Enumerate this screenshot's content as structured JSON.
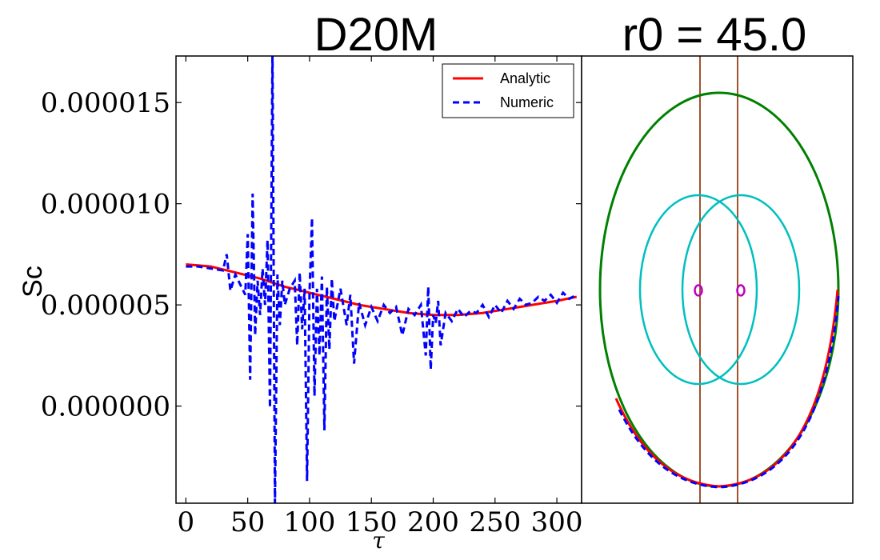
{
  "chart_data": [
    {
      "type": "line",
      "title": "D20M",
      "xlabel": "τ",
      "ylabel": "Sc",
      "xlim": [
        -8,
        320
      ],
      "ylim": [
        -4.8e-06,
        1.73e-05
      ],
      "xticks": [
        0,
        50,
        100,
        150,
        200,
        250,
        300
      ],
      "xtick_labels": [
        "0",
        "50",
        "100",
        "150",
        "200",
        "250",
        "300"
      ],
      "yticks": [
        0.0,
        5e-06,
        1e-05,
        1.5e-05
      ],
      "ytick_labels": [
        "0.000000",
        "0.000005",
        "0.000010",
        "0.000015"
      ],
      "legend": "top-right",
      "series": [
        {
          "name": "Analytic",
          "color": "#ff0000",
          "style": "solid",
          "x": [
            0,
            20,
            40,
            60,
            80,
            100,
            120,
            140,
            160,
            180,
            200,
            220,
            240,
            260,
            280,
            300,
            316
          ],
          "y": [
            7e-06,
            6.9e-06,
            6.6e-06,
            6.3e-06,
            5.9e-06,
            5.6e-06,
            5.3e-06,
            5e-06,
            4.8e-06,
            4.6e-06,
            4.5e-06,
            4.5e-06,
            4.6e-06,
            4.8e-06,
            5e-06,
            5.2e-06,
            5.4e-06
          ]
        },
        {
          "name": "Numeric",
          "color": "#0000ff",
          "style": "dashed",
          "x": [
            0,
            10,
            20,
            30,
            33,
            36,
            40,
            44,
            48,
            50,
            52,
            54,
            56,
            58,
            60,
            62,
            64,
            66,
            68,
            70,
            72,
            74,
            76,
            78,
            80,
            84,
            88,
            90,
            92,
            94,
            96,
            98,
            100,
            102,
            104,
            106,
            108,
            110,
            112,
            114,
            116,
            118,
            120,
            125,
            130,
            133,
            136,
            140,
            145,
            150,
            155,
            160,
            165,
            170,
            175,
            180,
            185,
            190,
            194,
            196,
            198,
            200,
            202,
            204,
            206,
            210,
            215,
            220,
            225,
            230,
            235,
            240,
            245,
            250,
            255,
            260,
            265,
            270,
            275,
            280,
            285,
            290,
            295,
            300,
            305,
            310,
            316
          ],
          "y": [
            6.9e-06,
            6.9e-06,
            6.8e-06,
            6.7e-06,
            7.5e-06,
            5.7e-06,
            6.5e-06,
            6e-06,
            5.5e-06,
            8.5e-06,
            1.3e-06,
            1.05e-05,
            3.5e-06,
            6.2e-06,
            4.5e-06,
            6.8e-06,
            5e-06,
            8.2e-06,
            -1e-07,
            1.75e-05,
            -4.8e-06,
            6.5e-06,
            4e-06,
            6.2e-06,
            5e-06,
            5.8e-06,
            6.2e-06,
            3e-06,
            6.6e-06,
            3.8e-06,
            5.8e-06,
            -3.7e-06,
            5.6e-06,
            9.3e-06,
            5e-07,
            5.8e-06,
            2.5e-06,
            6.4e-06,
            -1.2e-06,
            5.9e-06,
            2.8e-06,
            6.3e-06,
            4.2e-06,
            5.8e-06,
            4e-06,
            5.5e-06,
            2.1e-06,
            5.1e-06,
            4e-06,
            4.9e-06,
            4.2e-06,
            5e-06,
            4.6e-06,
            4.9e-06,
            3.5e-06,
            4.8e-06,
            4.5e-06,
            5e-06,
            2.5e-06,
            5.9e-06,
            1.8e-06,
            4.5e-06,
            4.1e-06,
            5.2e-06,
            3e-06,
            4.6e-06,
            4.2e-06,
            4.8e-06,
            4.4e-06,
            4.7e-06,
            4.6e-06,
            5e-06,
            4.4e-06,
            5e-06,
            4.6e-06,
            5.2e-06,
            4.8e-06,
            5.3e-06,
            5e-06,
            5.1e-06,
            5.4e-06,
            5.2e-06,
            5.5e-06,
            5.1e-06,
            5.6e-06,
            5.3e-06,
            5.5e-06
          ]
        }
      ]
    },
    {
      "type": "diagram",
      "title": "r0 = 45.0",
      "axes_ticks": "none",
      "colors": {
        "outer_orbit": "#008000",
        "inner_circles": "#00bfbf",
        "vertical_lines": "#a0522d",
        "small_circles": "#bf00bf",
        "analytic_track": "#ff0000",
        "numeric_track": "#0000ff"
      }
    }
  ]
}
